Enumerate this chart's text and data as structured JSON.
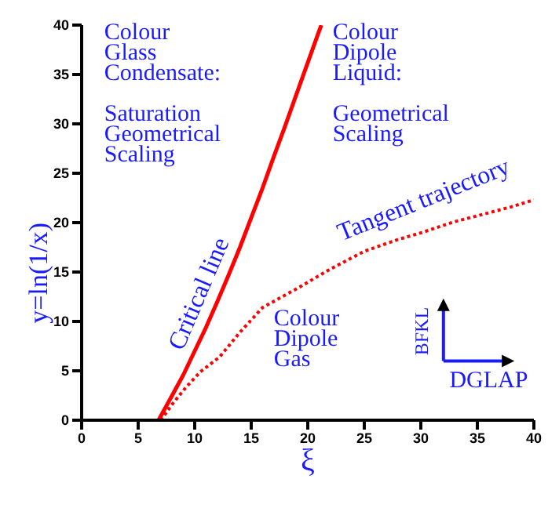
{
  "chart_data": {
    "type": "line",
    "xlabel": "ξ",
    "ylabel": "y=ln(1/x)",
    "xlim": [
      0,
      40
    ],
    "ylim": [
      0,
      40
    ],
    "xticks": [
      0,
      5,
      10,
      15,
      20,
      25,
      30,
      35,
      40
    ],
    "yticks": [
      0,
      5,
      10,
      15,
      20,
      25,
      30,
      35,
      40
    ],
    "marker": "none",
    "series": [
      {
        "name": "Critical line",
        "color": "#ff0000",
        "line_style": "solid",
        "x": [
          6.8,
          8,
          9,
          10,
          11,
          12,
          13,
          14,
          15,
          16,
          17,
          18,
          19,
          20,
          21,
          21.2
        ],
        "values": [
          0,
          2.5,
          4.6,
          7.0,
          9.4,
          12,
          14.7,
          17.5,
          20.5,
          23.5,
          26.7,
          29.8,
          33,
          36.2,
          39.4,
          40
        ]
      },
      {
        "name": "Tangent trajectory",
        "color": "#ff0000",
        "line_style": "dotted",
        "x": [
          7,
          8,
          9.2,
          10.5,
          12.2,
          14,
          16,
          19,
          22,
          25,
          28,
          30.1,
          33,
          35.7,
          38,
          40
        ],
        "values": [
          0,
          1.6,
          3.3,
          4.9,
          6.4,
          8.9,
          11.4,
          13.3,
          15.3,
          17.1,
          18.3,
          19,
          20.1,
          20.9,
          21.6,
          22.3
        ]
      }
    ],
    "annotations": [
      "Colour\nGlass\nCondensate:\n\nSaturation\nGeometrical\nScaling",
      "Colour\nDipole\nLiquid:\n\nGeometrical\nScaling",
      "Colour\nDipole\nGas",
      "BFKL",
      "DGLAP"
    ]
  }
}
